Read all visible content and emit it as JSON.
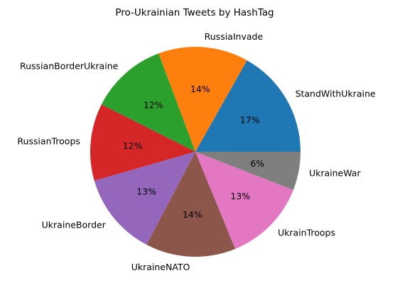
{
  "chart_data": {
    "type": "pie",
    "title": "Pro-Ukrainian Tweets by HashTag",
    "start_angle_deg": 0,
    "direction": "counterclockwise",
    "slices": [
      {
        "label": "StandWithUkraine",
        "value": 17,
        "pct_label": "17%",
        "color": "#1f77b4"
      },
      {
        "label": "RussiaInvade",
        "value": 14,
        "pct_label": "14%",
        "color": "#ff7f0e"
      },
      {
        "label": "RussianBorderUkraine",
        "value": 12,
        "pct_label": "12%",
        "color": "#2ca02c"
      },
      {
        "label": "RussianTroops",
        "value": 12,
        "pct_label": "12%",
        "color": "#d62728"
      },
      {
        "label": "UkraineBorder",
        "value": 13,
        "pct_label": "13%",
        "color": "#9467bd"
      },
      {
        "label": "UkraineNATO",
        "value": 14,
        "pct_label": "14%",
        "color": "#8c564b"
      },
      {
        "label": "UkrainTroops",
        "value": 13,
        "pct_label": "13%",
        "color": "#e377c2"
      },
      {
        "label": "UkraineWar",
        "value": 6,
        "pct_label": "6%",
        "color": "#7f7f7f"
      }
    ]
  }
}
